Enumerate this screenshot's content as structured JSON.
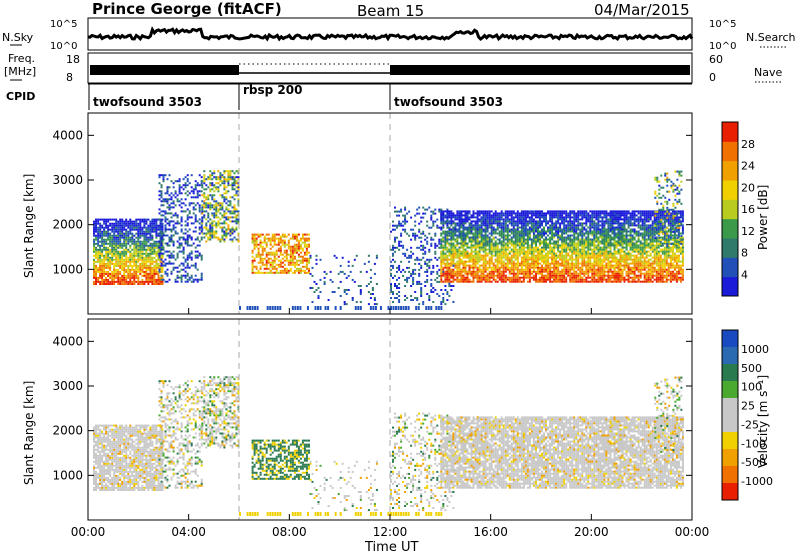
{
  "header": {
    "title": "Prince George (fitACF)",
    "beam": "Beam 15",
    "date": "04/Mar/2015"
  },
  "top_panel": {
    "left_label": "N.Sky",
    "left_ticks": [
      "10^5",
      "10^0"
    ],
    "right_label": "N.Search",
    "right_ticks": [
      "10^5",
      "10^0"
    ]
  },
  "freq_panel": {
    "left_label_line1": "Freq.",
    "left_label_line2": "[MHz]",
    "left_ticks": [
      "18",
      "8"
    ],
    "right_label": "Nave",
    "right_ticks": [
      "60",
      "0"
    ]
  },
  "cpid": {
    "label": "CPID",
    "segments": [
      {
        "name": "twofsound 3503",
        "start_hour": 0
      },
      {
        "name": "rbsp 200",
        "start_hour": 6
      },
      {
        "name": "twofsound 3503",
        "start_hour": 12
      }
    ]
  },
  "colors": {
    "power_scale": [
      "#1a1ad8",
      "#2050b8",
      "#2f7a6a",
      "#3a9a4a",
      "#b8cc20",
      "#f0d000",
      "#f0a000",
      "#f07000",
      "#e82000"
    ],
    "velocity_scale": [
      "#1a4ac0",
      "#2a6ab0",
      "#2a7a50",
      "#4aaa30",
      "#c8c8c8",
      "#c8c8c8",
      "#f0d000",
      "#f0a000",
      "#f07000",
      "#e82000"
    ]
  },
  "chart_data": [
    {
      "type": "heatmap",
      "panel": "power",
      "ylabel": "Slant Range [km]",
      "ylim": [
        0,
        4500
      ],
      "yticks": [
        1000,
        2000,
        3000,
        4000
      ],
      "xlim": [
        0,
        24
      ],
      "colorbar_label": "Power [dB]",
      "colorbar_ticks": [
        4,
        8,
        12,
        16,
        20,
        24,
        28
      ],
      "colorbar_range": [
        0,
        32
      ],
      "vlines": [
        6,
        12
      ]
    },
    {
      "type": "heatmap",
      "panel": "velocity",
      "ylabel": "Slant Range [km]",
      "xlabel": "Time UT",
      "ylim": [
        0,
        4500
      ],
      "yticks": [
        1000,
        2000,
        3000,
        4000
      ],
      "xlim": [
        0,
        24
      ],
      "xtick_labels": [
        "00:00",
        "04:00",
        "08:00",
        "12:00",
        "16:00",
        "20:00",
        "00:00"
      ],
      "colorbar_label": "Velocity [m s⁻¹]",
      "colorbar_ticks": [
        "1000",
        "500",
        "100",
        "25",
        "-25",
        "-100",
        "-500",
        "-1000"
      ],
      "vlines": [
        6,
        12
      ]
    }
  ]
}
